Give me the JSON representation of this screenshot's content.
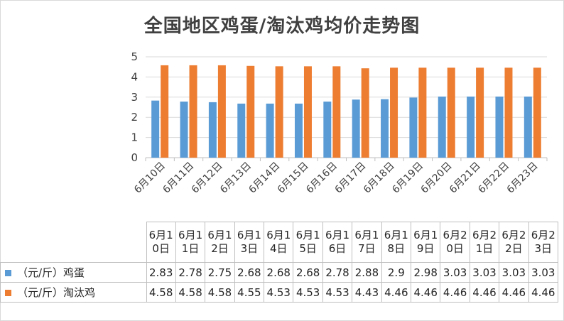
{
  "chart_data": {
    "type": "bar",
    "title": "全国地区鸡蛋/淘汰鸡均价走势图",
    "categories": [
      "6月10日",
      "6月11日",
      "6月12日",
      "6月13日",
      "6月14日",
      "6月15日",
      "6月16日",
      "6月17日",
      "6月18日",
      "6月19日",
      "6月20日",
      "6月21日",
      "6月22日",
      "6月23日"
    ],
    "series": [
      {
        "name": "（元/斤）鸡蛋",
        "color": "#5b9bd5",
        "values": [
          2.83,
          2.78,
          2.75,
          2.68,
          2.68,
          2.68,
          2.78,
          2.88,
          2.9,
          2.98,
          3.03,
          3.03,
          3.03,
          3.03
        ]
      },
      {
        "name": "（元/斤）淘汰鸡",
        "color": "#ed7d31",
        "values": [
          4.58,
          4.58,
          4.58,
          4.55,
          4.53,
          4.53,
          4.53,
          4.43,
          4.46,
          4.46,
          4.46,
          4.46,
          4.46,
          4.46
        ]
      }
    ],
    "ylim": [
      0,
      5
    ],
    "yticks": [
      0,
      1,
      2,
      3,
      4,
      5
    ],
    "grid": true,
    "legend": "data-table"
  },
  "table_value_labels": [
    [
      "2.83",
      "2.78",
      "2.75",
      "2.68",
      "2.68",
      "2.68",
      "2.78",
      "2.88",
      "2.9",
      "2.98",
      "3.03",
      "3.03",
      "3.03",
      "3.03"
    ],
    [
      "4.58",
      "4.58",
      "4.58",
      "4.55",
      "4.53",
      "4.53",
      "4.53",
      "4.43",
      "4.46",
      "4.46",
      "4.46",
      "4.46",
      "4.46",
      "4.46"
    ]
  ]
}
